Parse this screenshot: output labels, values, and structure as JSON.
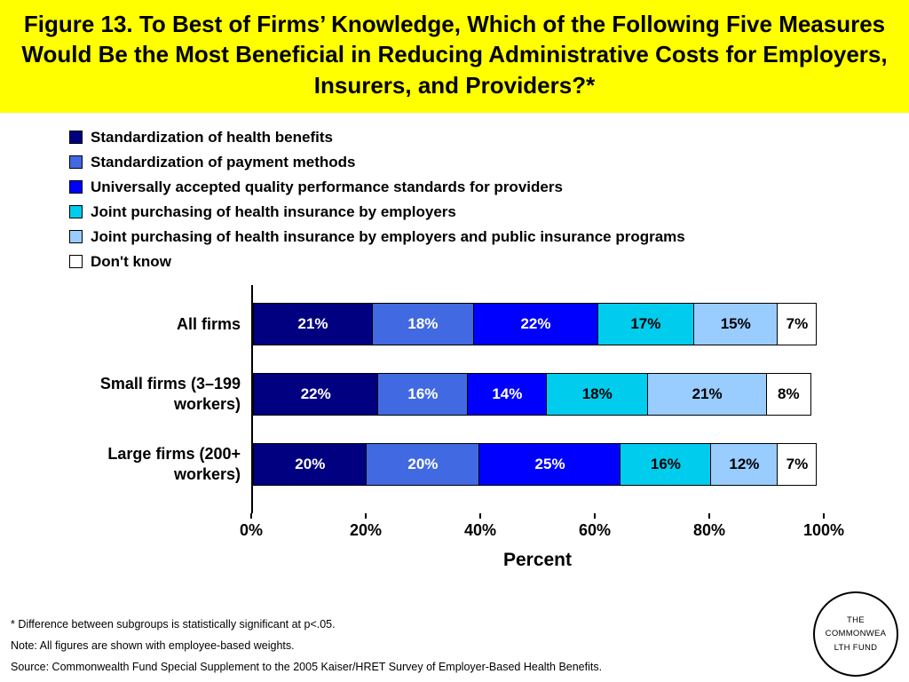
{
  "title": "Figure 13. To Best of Firms’ Knowledge, Which of the Following Five Measures Would Be the Most Beneficial in Reducing Administrative Costs for Employers, Insurers, and Providers?*",
  "chart_data": {
    "type": "bar",
    "stacked": true,
    "orientation": "horizontal",
    "title": "Figure 13. To Best of Firms’ Knowledge, Which of the Following Five Measures Would Be the Most Beneficial in Reducing Administrative Costs for Employers, Insurers, and Providers?*",
    "categories": [
      "All firms",
      "Small firms (3–199 workers)",
      "Large firms (200+ workers)"
    ],
    "series": [
      {
        "name": "Standardization of health benefits",
        "color": "#000080",
        "text_color": "#FFFFFF",
        "values": [
          21,
          22,
          20
        ]
      },
      {
        "name": "Standardization of payment methods",
        "color": "#4169E1",
        "text_color": "#FFFFFF",
        "values": [
          18,
          16,
          20
        ]
      },
      {
        "name": "Universally accepted quality performance standards for providers",
        "color": "#0000FF",
        "text_color": "#FFFFFF",
        "values": [
          22,
          14,
          25
        ]
      },
      {
        "name": "Joint purchasing of health insurance by employers",
        "color": "#00CCEE",
        "text_color": "#000000",
        "values": [
          17,
          18,
          16
        ]
      },
      {
        "name": "Joint purchasing of health insurance by employers and public insurance programs",
        "color": "#99CCFF",
        "text_color": "#000000",
        "values": [
          15,
          21,
          12
        ]
      },
      {
        "name": "Don't know",
        "color": "#FFFFFF",
        "text_color": "#000000",
        "values": [
          7,
          8,
          7
        ]
      }
    ],
    "x_ticks": [
      "0%",
      "20%",
      "40%",
      "60%",
      "80%",
      "100%"
    ],
    "xlabel": "Percent",
    "xlim": [
      0,
      100
    ],
    "value_suffix": "%",
    "grid": false,
    "legend_position": "top-left"
  },
  "footnotes": [
    "* Difference between subgroups is statistically significant at p<.05.",
    "Note: All figures are shown with employee-based weights.",
    "Source: Commonwealth Fund Special Supplement to the 2005 Kaiser/HRET Survey of Employer-Based Health Benefits."
  ],
  "logo_text": "THE COMMONWEALTH FUND"
}
